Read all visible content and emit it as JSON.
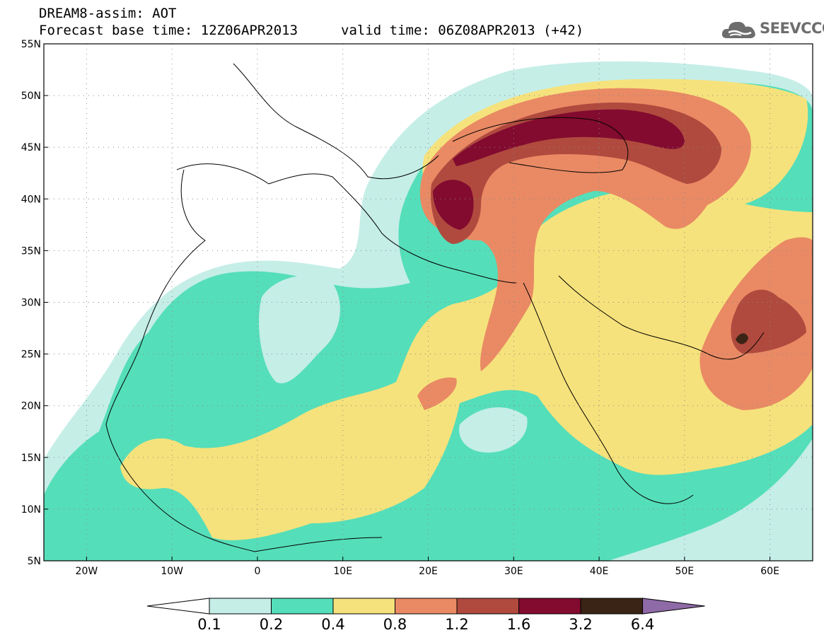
{
  "header": {
    "title_line1": "DREAM8-assim: AOT",
    "title_line2": "Forecast base time: 12Z06APR2013",
    "valid_time": "valid time: 06Z08APR2013 (+42)",
    "logo_text": "SEEVCCC",
    "logo_icon": "cloud-icon"
  },
  "map": {
    "lon_range": [
      -25,
      65
    ],
    "lat_range": [
      5,
      55
    ],
    "lon_ticks": [
      {
        "value": -20,
        "label": "20W"
      },
      {
        "value": -10,
        "label": "10W"
      },
      {
        "value": 0,
        "label": "0"
      },
      {
        "value": 10,
        "label": "10E"
      },
      {
        "value": 20,
        "label": "20E"
      },
      {
        "value": 30,
        "label": "30E"
      },
      {
        "value": 40,
        "label": "40E"
      },
      {
        "value": 50,
        "label": "50E"
      },
      {
        "value": 60,
        "label": "60E"
      }
    ],
    "lat_ticks": [
      {
        "value": 55,
        "label": "55N"
      },
      {
        "value": 50,
        "label": "50N"
      },
      {
        "value": 45,
        "label": "45N"
      },
      {
        "value": 40,
        "label": "40N"
      },
      {
        "value": 35,
        "label": "35N"
      },
      {
        "value": 30,
        "label": "30N"
      },
      {
        "value": 25,
        "label": "25N"
      },
      {
        "value": 20,
        "label": "20N"
      },
      {
        "value": 15,
        "label": "15N"
      },
      {
        "value": 10,
        "label": "10N"
      },
      {
        "value": 5,
        "label": "5N"
      }
    ],
    "grid": true
  },
  "colorbar": {
    "levels": [
      "0.1",
      "0.2",
      "0.4",
      "0.8",
      "1.2",
      "1.6",
      "3.2",
      "6.4"
    ],
    "colors": [
      "#ffffff",
      "#c5eee7",
      "#55deba",
      "#f6e27c",
      "#e98a64",
      "#b04a3e",
      "#820b2f",
      "#3a2416",
      "#8e6aa6"
    ]
  }
}
